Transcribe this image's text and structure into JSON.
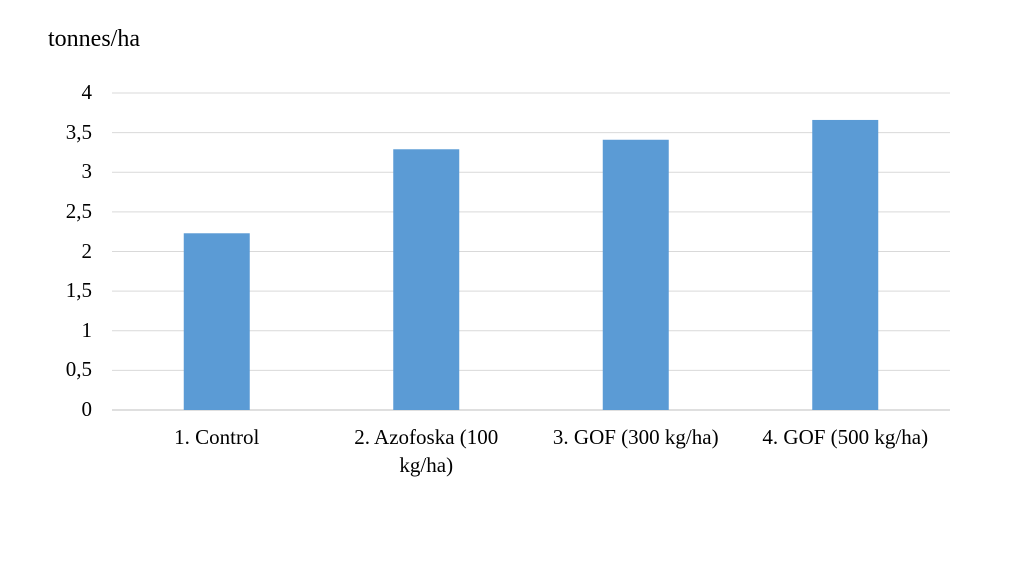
{
  "chart_data": {
    "type": "bar",
    "title": "",
    "y_unit": "tonnes/ha",
    "xlabel": "",
    "ylabel": "",
    "categories": [
      "1. Control",
      "2. Azofoska (100 kg/ha)",
      "3. GOF (300 kg/ha)",
      "4. GOF (500 kg/ha)"
    ],
    "values": [
      2.23,
      3.29,
      3.41,
      3.66
    ],
    "ylim": [
      0,
      4
    ],
    "yticks": [
      0,
      0.5,
      1,
      1.5,
      2,
      2.5,
      3,
      3.5,
      4
    ],
    "ytick_labels": [
      "0",
      "0,5",
      "1",
      "1,5",
      "2",
      "2,5",
      "3",
      "3,5",
      "4"
    ],
    "grid": true,
    "legend": "none",
    "bar_color": "#5b9bd5",
    "grid_color": "#d9d9d9",
    "axis_color": "#bfbfbf"
  }
}
